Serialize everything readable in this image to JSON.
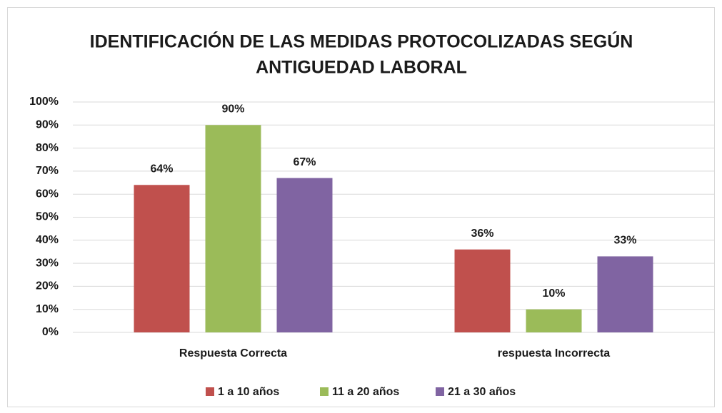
{
  "chart_data": {
    "type": "bar",
    "title": [
      "IDENTIFICACIÓN DE LAS MEDIDAS PROTOCOLIZADAS SEGÚN",
      "ANTIGUEDAD LABORAL"
    ],
    "categories": [
      "Respuesta Correcta",
      "respuesta Incorrecta"
    ],
    "series": [
      {
        "name": "1 a 10 años",
        "color": "#c0504d",
        "values": [
          64,
          36
        ],
        "value_labels": [
          "64%",
          "36%"
        ]
      },
      {
        "name": "11 a 20 años",
        "color": "#9bbb59",
        "values": [
          90,
          10
        ],
        "value_labels": [
          "90%",
          "10%"
        ]
      },
      {
        "name": "21 a 30 años",
        "color": "#8064a2",
        "values": [
          67,
          33
        ],
        "value_labels": [
          "67%",
          "33%"
        ]
      }
    ],
    "ylim": [
      0,
      100
    ],
    "yticks": [
      {
        "value": 0,
        "label": "0%"
      },
      {
        "value": 10,
        "label": "10%"
      },
      {
        "value": 20,
        "label": "20%"
      },
      {
        "value": 30,
        "label": "30%"
      },
      {
        "value": 40,
        "label": "40%"
      },
      {
        "value": 50,
        "label": "50%"
      },
      {
        "value": 60,
        "label": "60%"
      },
      {
        "value": 70,
        "label": "70%"
      },
      {
        "value": 80,
        "label": "80%"
      },
      {
        "value": 90,
        "label": "90%"
      },
      {
        "value": 100,
        "label": "100%"
      }
    ],
    "grid": true,
    "legend": "bottom"
  }
}
